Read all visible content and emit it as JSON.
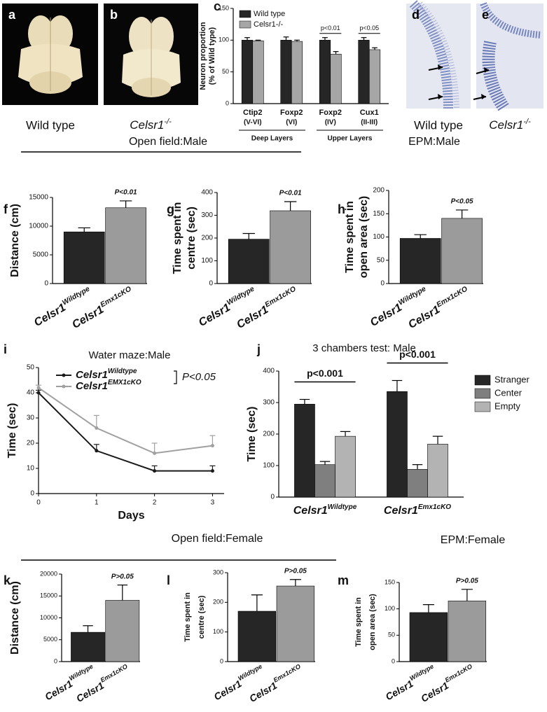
{
  "figure": {
    "images": [
      {
        "letter": "a",
        "caption": "Wild type"
      },
      {
        "letter": "b",
        "caption": "Celsr1",
        "caption_sup": "-/-"
      },
      {
        "letter": "d",
        "caption": "Wild type"
      },
      {
        "letter": "e",
        "caption": "Celsr1",
        "caption_sup": "-/-"
      }
    ],
    "headings": [
      "Open field:Male",
      "EPM:Male",
      "Open field:Female",
      "EPM:Female"
    ]
  },
  "chart_data": [
    {
      "label": "c",
      "type": "bar",
      "categories": [
        "Ctip2",
        "Foxp2",
        "Foxp2",
        "Cux1"
      ],
      "category_sublabels": [
        "(V-VI)",
        "(VI)",
        "(IV)",
        "(II-III)"
      ],
      "groups": [
        "Deep Layers",
        "Upper Layers"
      ],
      "series": [
        {
          "name": "Wild type",
          "color": "#262626",
          "values": [
            100,
            100,
            100,
            100
          ],
          "errors": [
            4,
            5,
            4,
            4
          ]
        },
        {
          "name": "Celsr1-/-",
          "color": "#a6a6a6",
          "values": [
            99,
            98,
            78,
            85
          ],
          "errors": [
            1,
            2,
            4,
            3
          ]
        }
      ],
      "annotations": [
        "p<0.01",
        "p<0.05"
      ],
      "ylabel": [
        "Neuron proportion",
        "(% of Wild type)"
      ],
      "ylim": [
        0,
        150
      ],
      "yticks": [
        0,
        50,
        100,
        150
      ],
      "legend": "upper left"
    },
    {
      "label": "f",
      "type": "bar",
      "categories": [
        "Celsr1",
        "Celsr1"
      ],
      "category_sups": [
        "Wildtype",
        "Emx1cKO"
      ],
      "values": [
        9000,
        13200
      ],
      "errors": [
        700,
        1200
      ],
      "colors": [
        "#262626",
        "#9b9b9b"
      ],
      "annotations": [
        "P<0.01"
      ],
      "ylabel": "Distance (cm)",
      "ylim": [
        0,
        15000
      ],
      "yticks": [
        0,
        5000,
        10000,
        15000
      ]
    },
    {
      "label": "g",
      "type": "bar",
      "categories": [
        "Celsr1",
        "Celsr1"
      ],
      "category_sups": [
        "Wildtype",
        "Emx1cKO"
      ],
      "values": [
        195,
        320
      ],
      "errors": [
        25,
        40
      ],
      "colors": [
        "#262626",
        "#9b9b9b"
      ],
      "annotations": [
        "P<0.01"
      ],
      "ylabel": [
        "Time spent in",
        "centre (sec)"
      ],
      "ylim": [
        0,
        400
      ],
      "yticks": [
        0,
        100,
        200,
        300,
        400
      ]
    },
    {
      "label": "h",
      "type": "bar",
      "categories": [
        "Celsr1",
        "Celsr1"
      ],
      "category_sups": [
        "Wildtype",
        "Emx1cKO"
      ],
      "values": [
        97,
        140
      ],
      "errors": [
        8,
        18
      ],
      "colors": [
        "#262626",
        "#9b9b9b"
      ],
      "annotations": [
        "P<0.05"
      ],
      "ylabel": [
        "Time spent in",
        "open area (sec)"
      ],
      "ylim": [
        0,
        200
      ],
      "yticks": [
        0,
        50,
        100,
        150,
        200
      ]
    },
    {
      "label": "i",
      "type": "line",
      "title": "Water maze:Male",
      "x": [
        0,
        1,
        2,
        3
      ],
      "series": [
        {
          "name": "Celsr1",
          "sup": "Wildtype",
          "color": "#1a1a1a",
          "values": [
            40,
            17,
            9,
            9
          ],
          "errors": [
            1,
            2.5,
            2,
            2
          ]
        },
        {
          "name": "Celsr1",
          "sup": "EMX1cKO",
          "color": "#a0a0a0",
          "values": [
            42,
            26,
            16,
            19
          ],
          "errors": [
            1,
            5,
            4,
            4
          ]
        }
      ],
      "annotations": [
        "P<0.05"
      ],
      "xlabel": "Days",
      "ylabel": "Time (sec)",
      "xlim": [
        0,
        3.2
      ],
      "xticks": [
        0,
        1,
        2,
        3
      ],
      "ylim": [
        0,
        50
      ],
      "yticks": [
        0,
        10,
        20,
        30,
        40,
        50
      ]
    },
    {
      "label": "j",
      "type": "bar",
      "title": "3 chambers test: Male",
      "categories": [
        "Celsr1",
        "Celsr1"
      ],
      "category_sups": [
        "Wildtype",
        "Emx1cKO"
      ],
      "series": [
        {
          "name": "Stranger",
          "color": "#262626",
          "values": [
            295,
            335
          ],
          "errors": [
            15,
            35
          ]
        },
        {
          "name": "Center",
          "color": "#7f7f7f",
          "values": [
            103,
            88
          ],
          "errors": [
            10,
            15
          ]
        },
        {
          "name": "Empty",
          "color": "#b3b3b3",
          "values": [
            193,
            168
          ],
          "errors": [
            15,
            25
          ]
        }
      ],
      "annotations": [
        "p<0.001",
        "p<0.001"
      ],
      "ylabel": "Time (sec)",
      "ylim": [
        0,
        400
      ],
      "yticks": [
        0,
        100,
        200,
        300,
        400
      ],
      "legend": "right"
    },
    {
      "label": "k",
      "type": "bar",
      "categories": [
        "Celsr1",
        "Celsr1"
      ],
      "category_sups": [
        "Wildtype",
        "Emx1cKO"
      ],
      "values": [
        6700,
        14000
      ],
      "errors": [
        1500,
        3500
      ],
      "colors": [
        "#262626",
        "#9b9b9b"
      ],
      "annotations": [
        "P>0.05"
      ],
      "ylabel": "Distance (cm)",
      "ylim": [
        0,
        20000
      ],
      "yticks": [
        0,
        5000,
        10000,
        15000,
        20000
      ]
    },
    {
      "label": "l",
      "type": "bar",
      "categories": [
        "Celsr1",
        "Celsr1"
      ],
      "category_sups": [
        "Wildtype",
        "Emx1cKO"
      ],
      "values": [
        170,
        255
      ],
      "errors": [
        55,
        22
      ],
      "colors": [
        "#262626",
        "#9b9b9b"
      ],
      "annotations": [
        "P>0.05"
      ],
      "ylabel": [
        "Time spent in",
        "centre (sec)"
      ],
      "ylim": [
        0,
        300
      ],
      "yticks": [
        0,
        100,
        200,
        300
      ]
    },
    {
      "label": "m",
      "type": "bar",
      "categories": [
        "Celsr1",
        "Celsr1"
      ],
      "category_sups": [
        "Wildtype",
        "Emx1cKO"
      ],
      "values": [
        93,
        115
      ],
      "errors": [
        15,
        22
      ],
      "colors": [
        "#262626",
        "#9b9b9b"
      ],
      "annotations": [
        "P>0.05"
      ],
      "ylabel": [
        "Time spent in",
        "open area (sec)"
      ],
      "ylim": [
        0,
        150
      ],
      "yticks": [
        0,
        50,
        100,
        150
      ]
    }
  ]
}
